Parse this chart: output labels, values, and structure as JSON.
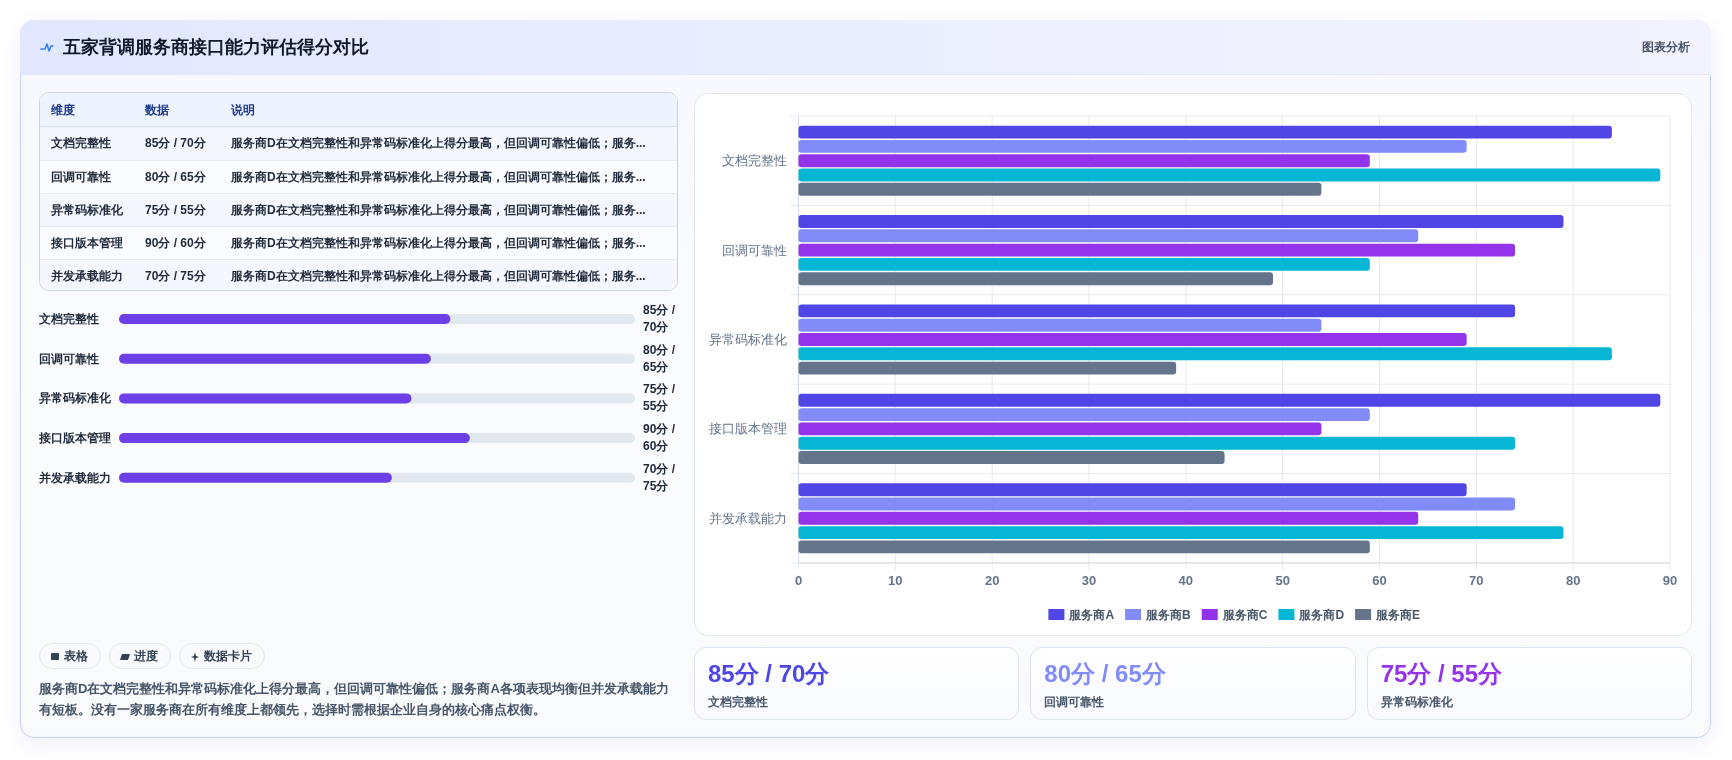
{
  "chart_data": [
    {
      "type": "other",
      "title": "五家背调服务商接口能力评估得分对比",
      "annotations": [
        "图表分析"
      ]
    },
    {
      "type": "other",
      "categories": [
        "维度",
        "数据",
        "说明"
      ],
      "cell_labels": [
        [
          "文档完整性",
          "85分 / 70分",
          "服务商D在文档完整性和异常码标准化上得分最高，但回调可靠性偏低；服务..."
        ],
        [
          "回调可靠性",
          "80分 / 65分",
          "服务商D在文档完整性和异常码标准化上得分最高，但回调可靠性偏低；服务..."
        ],
        [
          "异常码标准化",
          "75分 / 55分",
          "服务商D在文档完整性和异常码标准化上得分最高，但回调可靠性偏低；服务..."
        ],
        [
          "接口版本管理",
          "90分 / 60分",
          "服务商D在文档完整性和异常码标准化上得分最高，但回调可靠性偏低；服务..."
        ],
        [
          "并发承载能力",
          "70分 / 75分",
          "服务商D在文档完整性和异常码标准化上得分最高，但回调可靠性偏低；服务..."
        ]
      ]
    },
    {
      "type": "bar",
      "orientation": "horizontal",
      "categories": [
        "文档完整性",
        "回调可靠性",
        "异常码标准化",
        "接口版本管理",
        "并发承载能力"
      ],
      "values": [
        85,
        80,
        75,
        90,
        70
      ],
      "value_labels": [
        "85分 / 70分",
        "80分 / 65分",
        "75分 / 55分",
        "90分 / 60分",
        "70分 / 75分"
      ],
      "color": "#6d3fe6"
    },
    {
      "type": "bar",
      "orientation": "horizontal",
      "categories": [
        "文档完整性",
        "回调可靠性",
        "异常码标准化",
        "接口版本管理",
        "并发承载能力"
      ],
      "series": [
        {
          "name": "服务商A",
          "color": "#4f46e5",
          "values": [
            84,
            79,
            74,
            89,
            69
          ]
        },
        {
          "name": "服务商B",
          "color": "#818cf8",
          "values": [
            69,
            64,
            54,
            59,
            74
          ]
        },
        {
          "name": "服务商C",
          "color": "#9333ea",
          "values": [
            59,
            74,
            69,
            54,
            64
          ]
        },
        {
          "name": "服务商D",
          "color": "#06b6d4",
          "values": [
            89,
            59,
            84,
            74,
            79
          ]
        },
        {
          "name": "服务商E",
          "color": "#64748b",
          "values": [
            54,
            49,
            39,
            44,
            59
          ]
        }
      ],
      "xlim": [
        0,
        90
      ],
      "xticks": [
        0,
        10,
        20,
        30,
        40,
        50,
        60,
        70,
        80,
        90
      ],
      "grid": true,
      "legend": "bottom"
    },
    {
      "type": "other",
      "annotations": [
        "表格",
        "进度",
        "数据卡片",
        "服务商D在文档完整性和异常码标准化上得分最高，但回调可靠性偏低；服务商A各项表现均衡但并发承载能力有短板。没有一家服务商在所有维度上都领先，选择时需根据企业自身的核心痛点权衡。"
      ]
    },
    {
      "type": "other",
      "categories": [
        "文档完整性",
        "回调可靠性",
        "异常码标准化"
      ],
      "value_labels": [
        "85分 / 70分",
        "80分 / 65分",
        "75分 / 55分"
      ]
    }
  ]
}
